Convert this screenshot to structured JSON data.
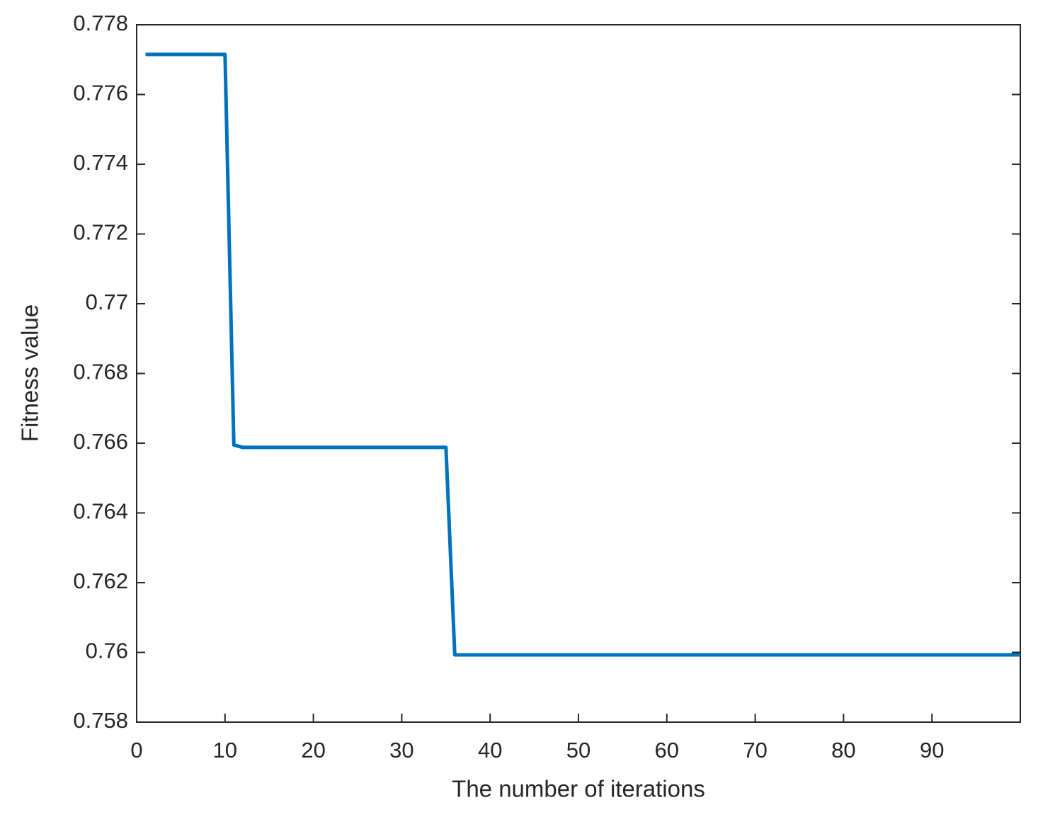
{
  "chart_data": {
    "type": "line",
    "x_label": "The number of iterations",
    "y_label": "Fitness value",
    "x": [
      1,
      10,
      11,
      12,
      35,
      36,
      100
    ],
    "series": [
      {
        "color": "#0072bd",
        "values": [
          0.77715,
          0.77715,
          0.76595,
          0.76588,
          0.76588,
          0.75993,
          0.75993
        ]
      }
    ],
    "xlim": [
      0,
      100
    ],
    "xticks": [
      0,
      10,
      20,
      30,
      40,
      50,
      60,
      70,
      80,
      90
    ],
    "ylim": [
      0.758,
      0.778
    ],
    "yticks": [
      0.758,
      0.76,
      0.762,
      0.764,
      0.766,
      0.768,
      0.77,
      0.772,
      0.774,
      0.776,
      0.778
    ],
    "grid": false
  }
}
